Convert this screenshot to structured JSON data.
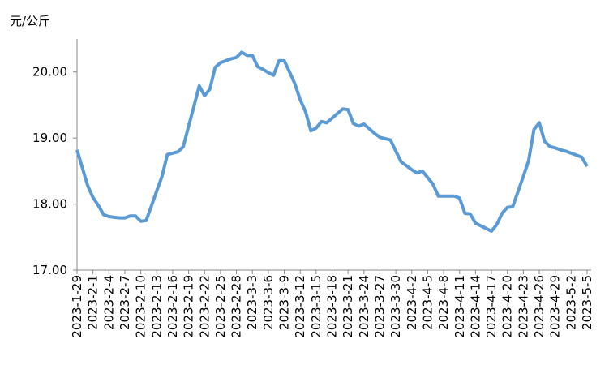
{
  "chart_data": {
    "type": "line",
    "y_label": "元/公斤",
    "categories": [
      "2023-1-29",
      null,
      null,
      "2023-2-1",
      null,
      null,
      "2023-2-4",
      null,
      null,
      "2023-2-7",
      null,
      null,
      "2023-2-10",
      null,
      null,
      "2023-2-13",
      null,
      null,
      "2023-2-16",
      null,
      null,
      "2023-2-19",
      null,
      null,
      "2023-2-22",
      null,
      null,
      "2023-2-25",
      null,
      null,
      "2023-2-28",
      null,
      null,
      "2023-3-3",
      null,
      null,
      "2023-3-6",
      null,
      null,
      "2023-3-9",
      null,
      null,
      "2023-3-12",
      null,
      null,
      "2023-3-15",
      null,
      null,
      "2023-3-18",
      null,
      null,
      "2023-3-21",
      null,
      null,
      "2023-3-24",
      null,
      null,
      "2023-3-27",
      null,
      null,
      "2023-3-30",
      null,
      null,
      "2023-4-2",
      null,
      null,
      "2023-4-5",
      null,
      null,
      "2023-4-8",
      null,
      null,
      "2023-4-11",
      null,
      null,
      "2023-4-14",
      null,
      null,
      "2023-4-17",
      null,
      null,
      "2023-4-20",
      null,
      null,
      "2023-4-23",
      null,
      null,
      "2023-4-26",
      null,
      null,
      "2023-4-29",
      null,
      null,
      "2023-5-2",
      null,
      null,
      "2023-5-5"
    ],
    "values": [
      18.82,
      18.55,
      18.28,
      18.1,
      17.98,
      17.84,
      17.81,
      17.8,
      17.79,
      17.79,
      17.82,
      17.82,
      17.74,
      17.75,
      17.97,
      18.2,
      18.42,
      18.75,
      18.77,
      18.79,
      18.87,
      19.18,
      19.48,
      19.79,
      19.64,
      19.74,
      20.07,
      20.14,
      20.17,
      20.2,
      20.22,
      20.3,
      20.25,
      20.25,
      20.08,
      20.04,
      19.99,
      19.95,
      20.17,
      20.17,
      20.0,
      19.82,
      19.58,
      19.4,
      19.11,
      19.15,
      19.25,
      19.23,
      19.3,
      19.37,
      19.44,
      19.43,
      19.22,
      19.18,
      19.21,
      19.14,
      19.07,
      19.01,
      18.99,
      18.97,
      18.8,
      18.64,
      18.58,
      18.52,
      18.47,
      18.5,
      18.4,
      18.3,
      18.12,
      18.12,
      18.12,
      18.12,
      18.09,
      17.86,
      17.85,
      17.71,
      17.67,
      17.63,
      17.59,
      17.69,
      17.86,
      17.95,
      17.96,
      18.19,
      18.42,
      18.66,
      19.13,
      19.23,
      18.95,
      18.87,
      18.85,
      18.82,
      18.8,
      18.77,
      18.74,
      18.71,
      18.57
    ],
    "color": "#5b9bd5",
    "ylim": [
      17,
      20.5
    ],
    "yticks": [
      {
        "value": 17,
        "label": "17.00"
      },
      {
        "value": 18,
        "label": "18.00"
      },
      {
        "value": 19,
        "label": "19.00"
      },
      {
        "value": 20,
        "label": "20.00"
      }
    ]
  }
}
